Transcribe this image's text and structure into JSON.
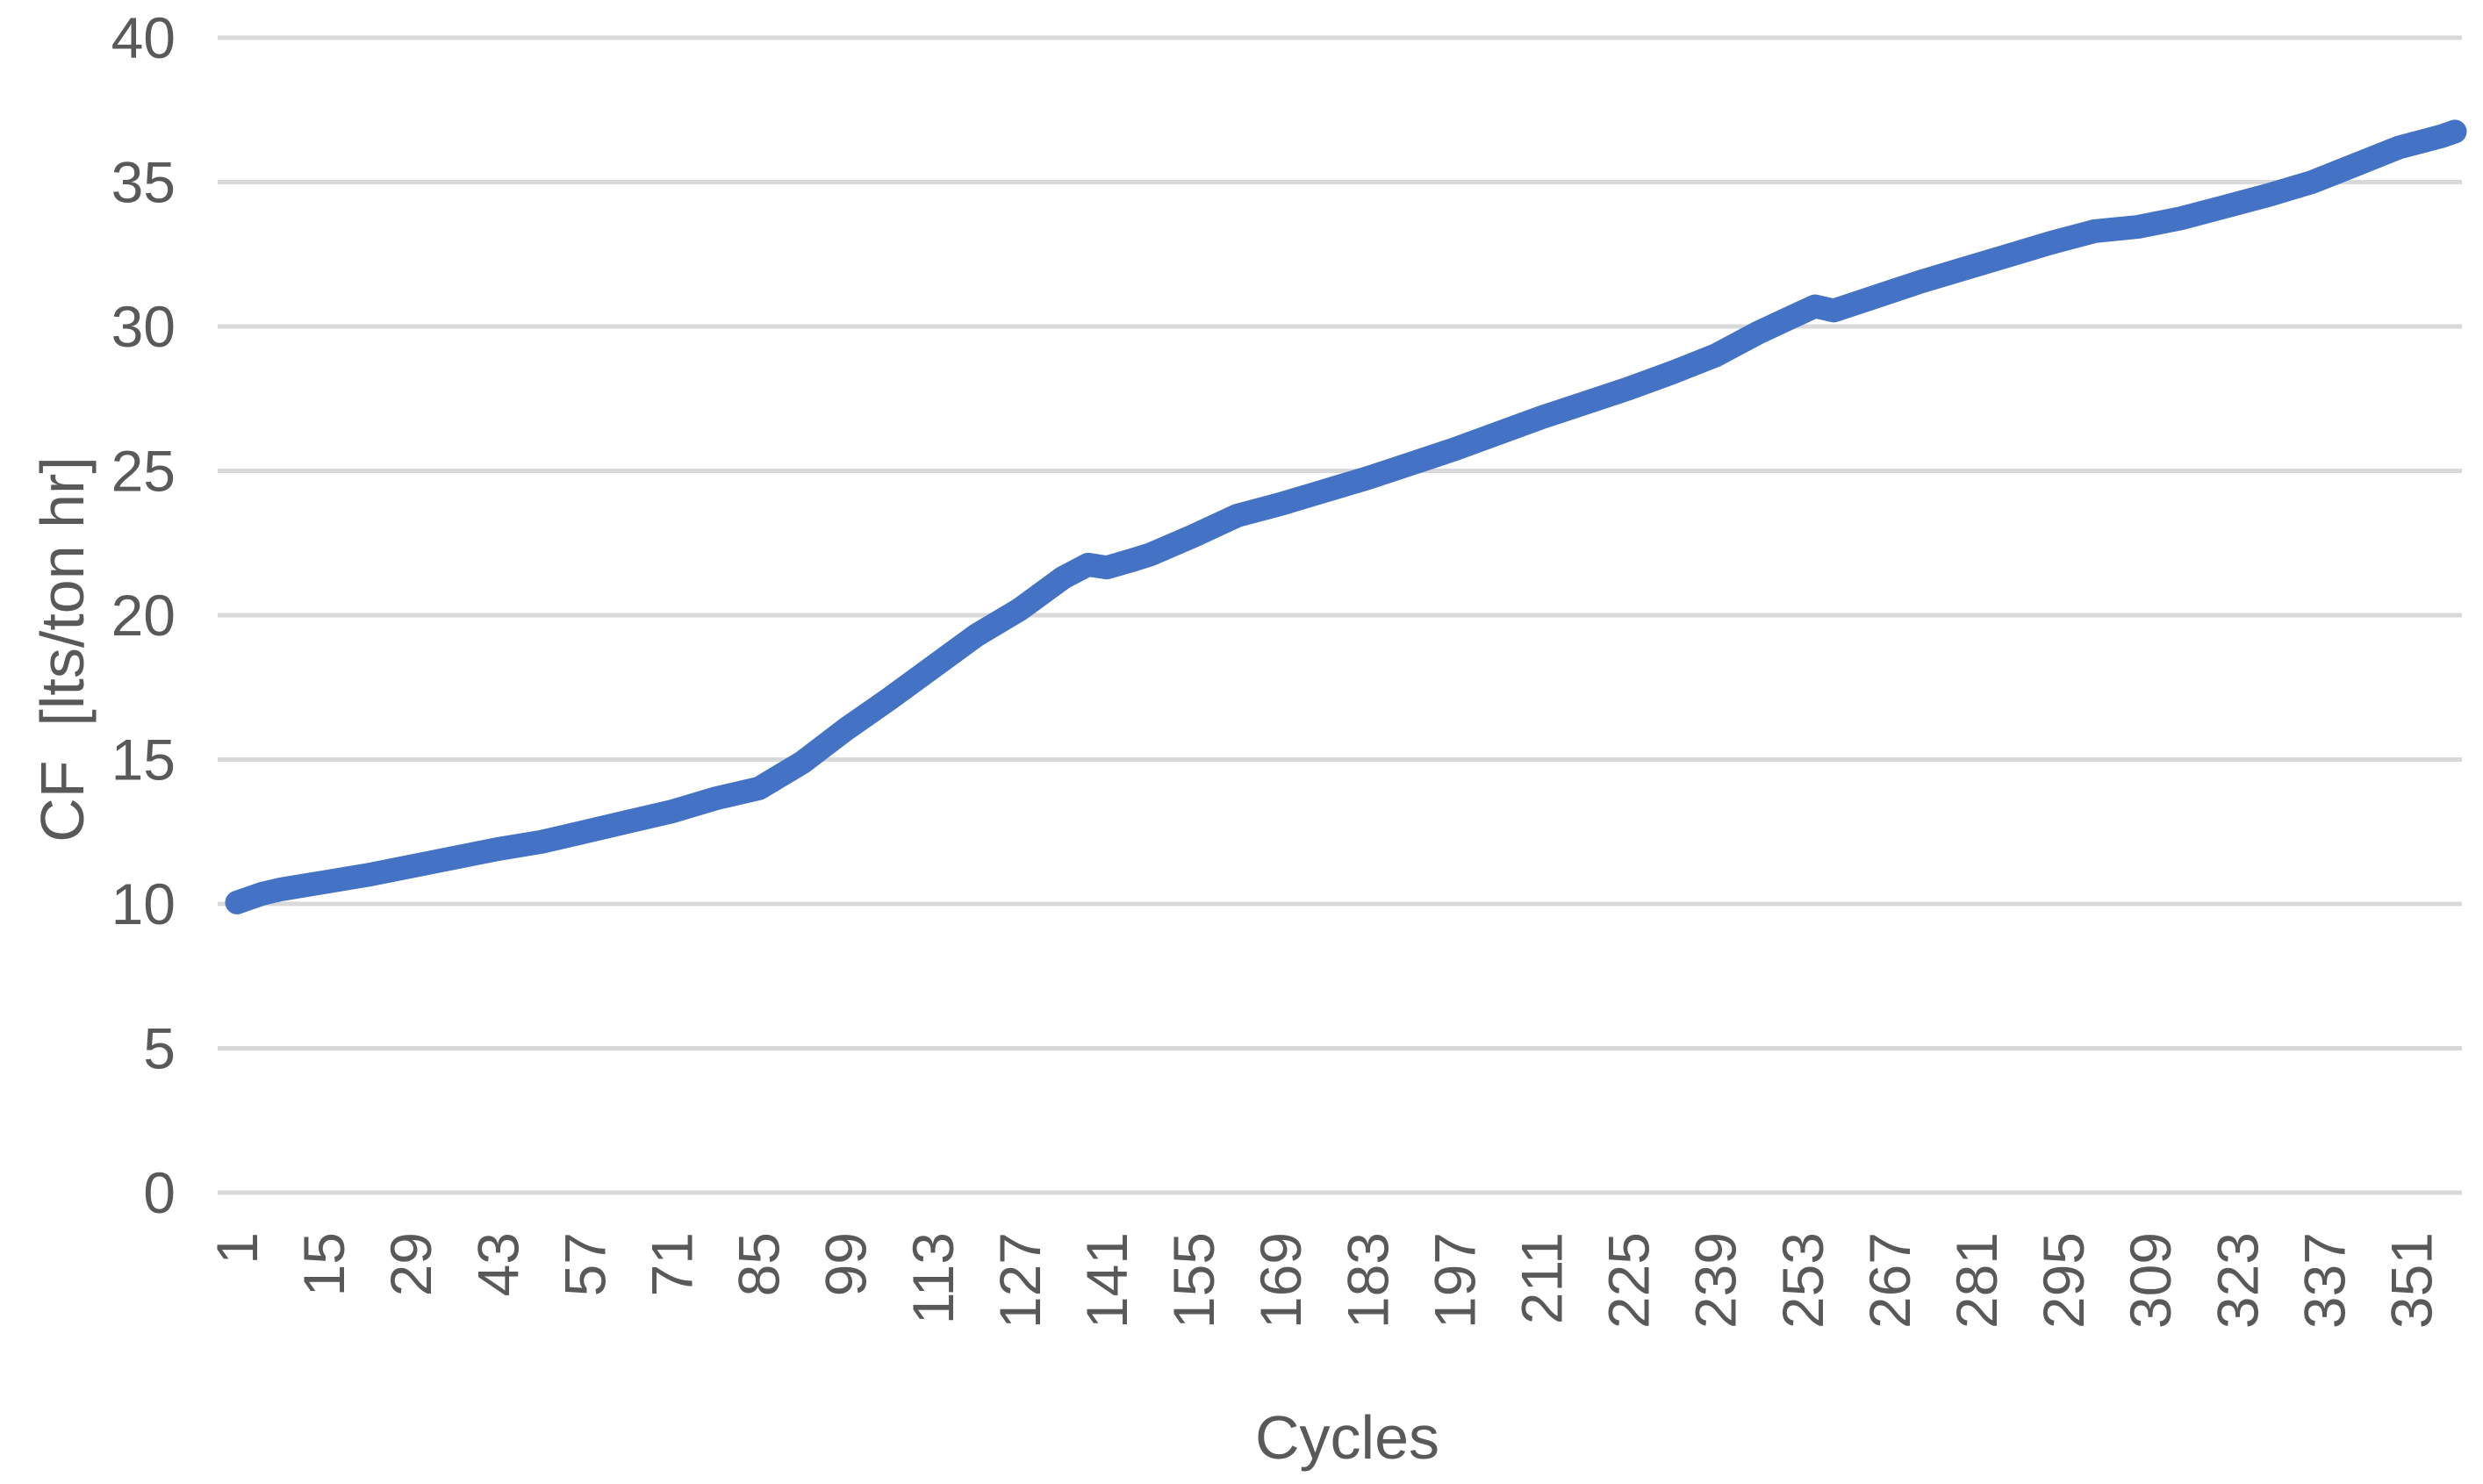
{
  "chart_data": {
    "type": "line",
    "title": "",
    "xlabel": "Cycles",
    "ylabel": "CF  [lts/ton hr]",
    "x_axis": {
      "tick_labels": [
        "1",
        "15",
        "29",
        "43",
        "57",
        "71",
        "85",
        "99",
        "113",
        "127",
        "141",
        "155",
        "169",
        "183",
        "197",
        "211",
        "225",
        "239",
        "253",
        "267",
        "281",
        "295",
        "309",
        "323",
        "337",
        "351"
      ],
      "tick_step": 14,
      "range": [
        1,
        358
      ],
      "label_rotation_deg": -90
    },
    "y_axis": {
      "ticks": [
        0,
        5,
        10,
        15,
        20,
        25,
        30,
        35,
        40
      ],
      "range": [
        0,
        40
      ]
    },
    "grid": {
      "horizontal": true,
      "vertical": false
    },
    "legend": "none",
    "series": [
      {
        "name": "CF",
        "color": "#4472C4",
        "points": [
          [
            1,
            10.05
          ],
          [
            5,
            10.35
          ],
          [
            8,
            10.5
          ],
          [
            15,
            10.75
          ],
          [
            22,
            11.0
          ],
          [
            29,
            11.3
          ],
          [
            36,
            11.6
          ],
          [
            43,
            11.9
          ],
          [
            50,
            12.15
          ],
          [
            57,
            12.5
          ],
          [
            64,
            12.85
          ],
          [
            71,
            13.2
          ],
          [
            78,
            13.65
          ],
          [
            85,
            14.0
          ],
          [
            92,
            14.9
          ],
          [
            99,
            16.05
          ],
          [
            106,
            17.1
          ],
          [
            113,
            18.2
          ],
          [
            120,
            19.3
          ],
          [
            127,
            20.2
          ],
          [
            134,
            21.3
          ],
          [
            138,
            21.75
          ],
          [
            141,
            21.65
          ],
          [
            145,
            21.9
          ],
          [
            148,
            22.1
          ],
          [
            155,
            22.75
          ],
          [
            162,
            23.45
          ],
          [
            169,
            23.85
          ],
          [
            176,
            24.3
          ],
          [
            183,
            24.75
          ],
          [
            190,
            25.25
          ],
          [
            197,
            25.75
          ],
          [
            204,
            26.3
          ],
          [
            211,
            26.85
          ],
          [
            218,
            27.35
          ],
          [
            225,
            27.85
          ],
          [
            232,
            28.4
          ],
          [
            239,
            29.0
          ],
          [
            246,
            29.8
          ],
          [
            253,
            30.5
          ],
          [
            255,
            30.7
          ],
          [
            258,
            30.55
          ],
          [
            265,
            31.05
          ],
          [
            272,
            31.55
          ],
          [
            279,
            32.0
          ],
          [
            286,
            32.45
          ],
          [
            293,
            32.9
          ],
          [
            300,
            33.3
          ],
          [
            307,
            33.45
          ],
          [
            314,
            33.75
          ],
          [
            321,
            34.15
          ],
          [
            328,
            34.55
          ],
          [
            335,
            35.0
          ],
          [
            342,
            35.6
          ],
          [
            349,
            36.2
          ],
          [
            356,
            36.6
          ],
          [
            358,
            36.75
          ]
        ]
      }
    ]
  },
  "colors": {
    "series_line": "#4472C4",
    "gridline": "#D9D9D9",
    "axis_text": "#595959",
    "background": "#FFFFFF"
  }
}
